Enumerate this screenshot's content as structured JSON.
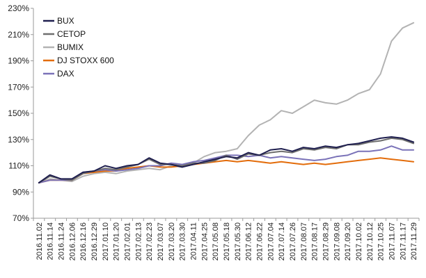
{
  "chart_data": {
    "type": "line",
    "title": "",
    "xlabel": "",
    "ylabel": "",
    "ylim": [
      70,
      230
    ],
    "y_ticks": [
      "70%",
      "90%",
      "110%",
      "130%",
      "150%",
      "170%",
      "190%",
      "210%",
      "230%"
    ],
    "y_tick_values": [
      70,
      90,
      110,
      130,
      150,
      170,
      190,
      210,
      230
    ],
    "x_ticks": [
      "2016.11.02",
      "2016.11.14",
      "2016.11.24",
      "2016.12.06",
      "2016.12.16",
      "2016.12.29",
      "2017.01.10",
      "2017.01.20",
      "2017.02.01",
      "2017.02.13",
      "2017.02.23",
      "2017.03.07",
      "2017.03.20",
      "2017.03.30",
      "2017.04.11",
      "2017.04.25",
      "2017.05.08",
      "2017.05.18",
      "2017.05.30",
      "2017.06.12",
      "2017.06.22",
      "2017.07.04",
      "2017.07.14",
      "2017.07.26",
      "2017.08.07",
      "2017.08.17",
      "2017.08.29",
      "2017.09.08",
      "2017.09.20",
      "2017.10.02",
      "2017.10.12",
      "2017.10.25",
      "2017.11.07",
      "2017.11.17",
      "2017.11.29"
    ],
    "grid": false,
    "legend_position": "top-left",
    "series": [
      {
        "name": "BUX",
        "color": "#1f1f4f",
        "values": [
          97,
          103,
          100,
          100,
          105,
          106,
          110,
          108,
          110,
          111,
          116,
          112,
          111,
          109,
          111,
          113,
          115,
          117,
          116,
          120,
          118,
          122,
          123,
          121,
          124,
          123,
          125,
          124,
          126,
          127,
          129,
          131,
          132,
          131,
          128
        ]
      },
      {
        "name": "CETOP",
        "color": "#6e6e6e",
        "values": [
          97,
          102,
          100,
          99,
          104,
          106,
          108,
          107,
          109,
          111,
          115,
          111,
          111,
          110,
          112,
          112,
          114,
          118,
          115,
          119,
          118,
          120,
          121,
          120,
          123,
          122,
          124,
          123,
          126,
          126,
          128,
          129,
          131,
          130,
          127
        ]
      },
      {
        "name": "BUMIX",
        "color": "#b3b3b3",
        "values": [
          97,
          100,
          99,
          98,
          102,
          104,
          105,
          104,
          106,
          107,
          108,
          107,
          110,
          109,
          112,
          117,
          120,
          121,
          123,
          133,
          141,
          145,
          152,
          150,
          155,
          160,
          158,
          157,
          160,
          165,
          168,
          180,
          205,
          215,
          219
        ]
      },
      {
        "name": "DJ STOXX 600",
        "color": "#e36c0a",
        "values": [
          97,
          99,
          99,
          99,
          104,
          105,
          106,
          106,
          108,
          109,
          110,
          109,
          109,
          110,
          111,
          112,
          113,
          114,
          113,
          114,
          113,
          112,
          113,
          112,
          111,
          112,
          111,
          112,
          113,
          114,
          115,
          116,
          115,
          114,
          113
        ]
      },
      {
        "name": "DAX",
        "color": "#7a72b8",
        "values": [
          97,
          99,
          99,
          99,
          105,
          106,
          107,
          106,
          107,
          108,
          110,
          110,
          112,
          111,
          113,
          114,
          116,
          118,
          118,
          117,
          118,
          116,
          117,
          116,
          115,
          114,
          115,
          117,
          118,
          121,
          121,
          122,
          125,
          122,
          122
        ]
      }
    ]
  }
}
